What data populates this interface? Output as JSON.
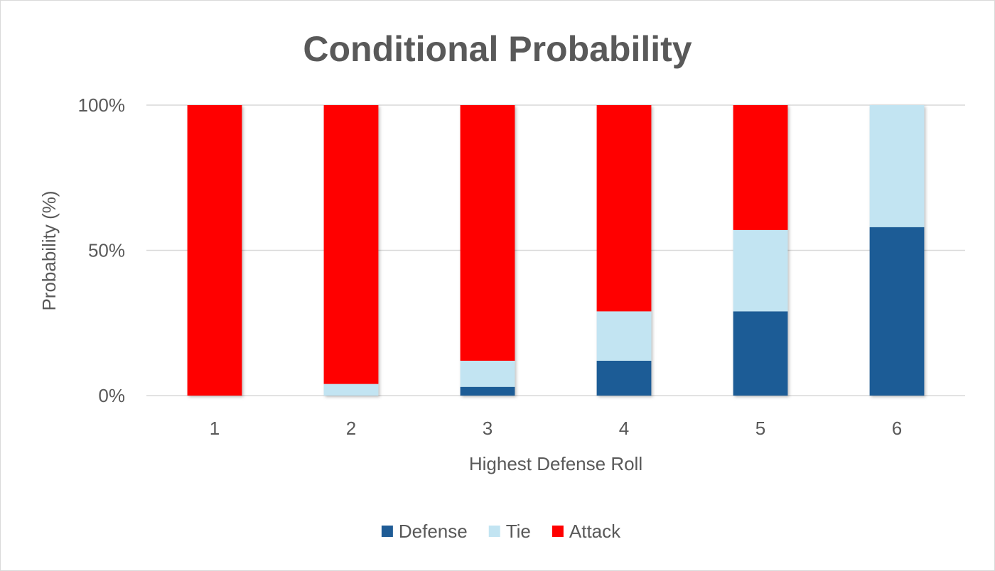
{
  "chart_data": {
    "type": "bar",
    "stacked": true,
    "title": "Conditional Probability",
    "xlabel": "Highest Defense Roll",
    "ylabel": "Probability (%)",
    "ylim": [
      0,
      100
    ],
    "yticks": [
      0,
      50,
      100
    ],
    "ytick_labels": [
      "0%",
      "50%",
      "100%"
    ],
    "categories": [
      "1",
      "2",
      "3",
      "4",
      "5",
      "6"
    ],
    "series": [
      {
        "name": "Defense",
        "color": "#1f5c96",
        "values": [
          0,
          0,
          3,
          12,
          29,
          58
        ]
      },
      {
        "name": "Tie",
        "color": "#c2e4f2",
        "values": [
          0,
          4,
          9,
          17,
          28,
          42
        ]
      },
      {
        "name": "Attack",
        "color": "#ff0000",
        "values": [
          100,
          96,
          88,
          71,
          43,
          0
        ]
      }
    ],
    "grid": true,
    "legend_position": "bottom"
  }
}
